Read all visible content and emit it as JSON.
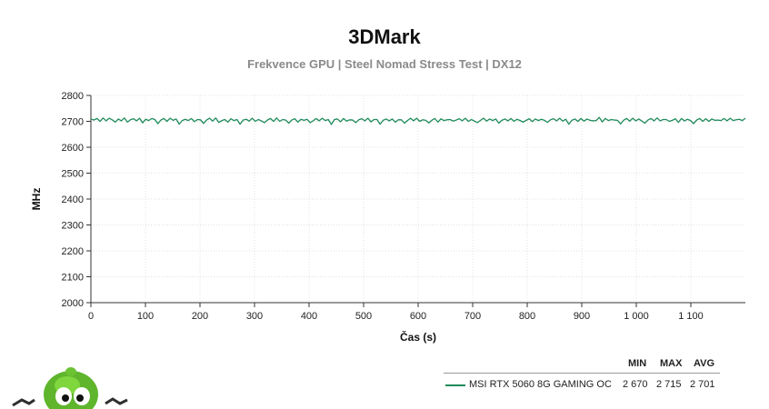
{
  "chart_data": {
    "type": "line",
    "title": "3DMark",
    "subtitle": "Frekvence GPU | Steel Nomad Stress Test | DX12",
    "xlabel": "Čas (s)",
    "ylabel": "MHz",
    "xlim": [
      0,
      1200
    ],
    "ylim": [
      2000,
      2800
    ],
    "x_ticks": [
      0,
      100,
      200,
      300,
      400,
      500,
      600,
      700,
      800,
      900,
      1000,
      1100
    ],
    "x_tick_labels": [
      "0",
      "100",
      "200",
      "300",
      "400",
      "500",
      "600",
      "700",
      "800",
      "900",
      "1 000",
      "1 100"
    ],
    "y_ticks": [
      2000,
      2100,
      2200,
      2300,
      2400,
      2500,
      2600,
      2700,
      2800
    ],
    "y_tick_labels": [
      "2000",
      "2100",
      "2200",
      "2300",
      "2400",
      "2500",
      "2600",
      "2700",
      "2800"
    ],
    "grid": true,
    "legend_position": "bottom-right",
    "series": [
      {
        "name": "MSI RTX 5060 8G GAMING OC",
        "color": "#1f8a5b",
        "x_range": [
          0,
          1200
        ],
        "values": [
          2709,
          2705,
          2711,
          2700,
          2713,
          2702,
          2712,
          2706,
          2697,
          2709,
          2702,
          2713,
          2697,
          2706,
          2710,
          2702,
          2712,
          2694,
          2708,
          2703,
          2711,
          2707,
          2691,
          2705,
          2711,
          2700,
          2712,
          2704,
          2709,
          2689,
          2703,
          2708,
          2703,
          2711,
          2699,
          2707,
          2706,
          2692,
          2705,
          2712,
          2701,
          2713,
          2696,
          2703,
          2707,
          2697,
          2710,
          2703,
          2707,
          2689,
          2705,
          2708,
          2701,
          2712,
          2700,
          2707,
          2702,
          2695,
          2705,
          2711,
          2700,
          2713,
          2700,
          2707,
          2705,
          2693,
          2705,
          2710,
          2697,
          2708,
          2704,
          2708,
          2695,
          2702,
          2711,
          2702,
          2712,
          2703,
          2707,
          2688,
          2707,
          2709,
          2698,
          2711,
          2701,
          2706,
          2705,
          2695,
          2706,
          2710,
          2702,
          2712,
          2698,
          2707,
          2707,
          2689,
          2704,
          2709,
          2702,
          2709,
          2697,
          2706,
          2706,
          2693,
          2703,
          2712,
          2702,
          2712,
          2700,
          2706,
          2704,
          2694,
          2704,
          2711,
          2697,
          2710,
          2703,
          2706,
          2707,
          2701,
          2705,
          2710,
          2702,
          2712,
          2700,
          2707,
          2701,
          2695,
          2704,
          2712,
          2701,
          2709,
          2703,
          2709,
          2693,
          2704,
          2709,
          2702,
          2711,
          2700,
          2708,
          2703,
          2697,
          2704,
          2710,
          2699,
          2709,
          2703,
          2708,
          2704,
          2696,
          2706,
          2710,
          2702,
          2712,
          2701,
          2708,
          2689,
          2704,
          2709,
          2700,
          2711,
          2701,
          2709,
          2704,
          2702,
          2703,
          2715,
          2698,
          2711,
          2703,
          2707,
          2705,
          2704,
          2690,
          2704,
          2711,
          2701,
          2712,
          2702,
          2709,
          2701,
          2693,
          2705,
          2711,
          2702,
          2713,
          2702,
          2707,
          2707,
          2700,
          2704,
          2710,
          2696,
          2711,
          2702,
          2708,
          2703,
          2691,
          2705,
          2711,
          2700,
          2710,
          2700,
          2709,
          2704,
          2705,
          2703,
          2711,
          2702,
          2712,
          2703,
          2706,
          2708,
          2703,
          2712
        ]
      }
    ]
  },
  "legend": {
    "headers": [
      "MIN",
      "MAX",
      "AVG"
    ],
    "rows": [
      {
        "name": "MSI RTX 5060 8G GAMING OC",
        "min": "2 670",
        "max": "2 715",
        "avg": "2 701"
      }
    ]
  }
}
